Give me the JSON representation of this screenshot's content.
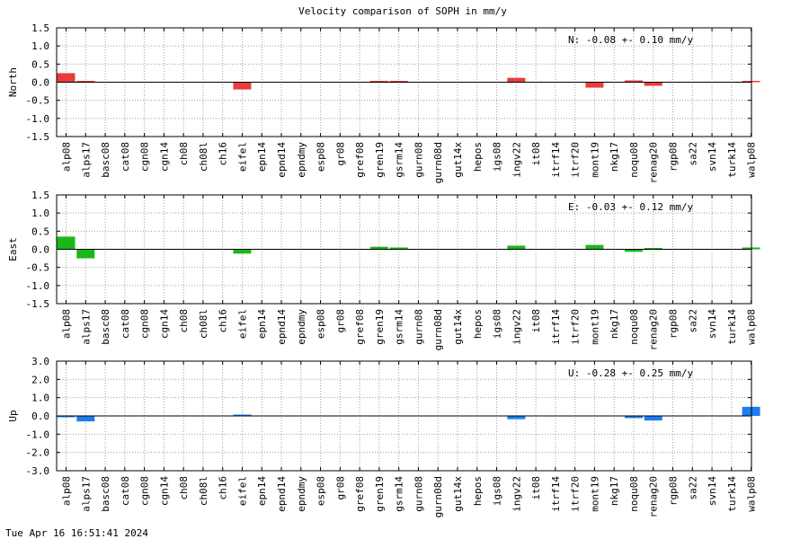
{
  "title": "Velocity comparison of SOPH in mm/y",
  "timestamp": "Tue Apr 16 16:51:41 2024",
  "chart_data": [
    {
      "type": "bar",
      "ylabel": "North",
      "ylim": [
        -1.5,
        1.5
      ],
      "yticks": [
        "1.5",
        "1.0",
        "0.5",
        "0.0",
        "-0.5",
        "-1.0",
        "-1.5"
      ],
      "yticks_values": [
        1.5,
        1.0,
        0.5,
        0.0,
        -0.5,
        -1.0,
        -1.5
      ],
      "grid": true,
      "color": "#e83c3c",
      "annotation": "N:  -0.08 +-  0.10 mm/y",
      "categories": [
        "alp08",
        "alps17",
        "basc08",
        "cat08",
        "cgn08",
        "cgn14",
        "ch08",
        "ch08l",
        "ch16",
        "eifel",
        "epn14",
        "epnd14",
        "epndmy",
        "esp08",
        "gr08",
        "gref08",
        "gren19",
        "gsrm14",
        "gurn08",
        "gurn08d",
        "gut14x",
        "hepos",
        "igs08",
        "ingv22",
        "it08",
        "itrf14",
        "itrf20",
        "mont19",
        "nkg17",
        "noqu08",
        "renag20",
        "rgp08",
        "sa22",
        "svn14",
        "turk14",
        "walp08"
      ],
      "values": [
        0.25,
        0.02,
        0,
        0,
        0,
        0,
        0,
        0,
        0,
        -0.2,
        0,
        0,
        0,
        0,
        0,
        0,
        0.02,
        0.02,
        0,
        0,
        0,
        0,
        0,
        0.12,
        0,
        0,
        0,
        -0.15,
        0,
        0.05,
        -0.1,
        0,
        0,
        0,
        0,
        0.02
      ]
    },
    {
      "type": "bar",
      "ylabel": "East",
      "ylim": [
        -1.5,
        1.5
      ],
      "yticks": [
        "1.5",
        "1.0",
        "0.5",
        "0.0",
        "-0.5",
        "-1.0",
        "-1.5"
      ],
      "yticks_values": [
        1.5,
        1.0,
        0.5,
        0.0,
        -0.5,
        -1.0,
        -1.5
      ],
      "grid": true,
      "color": "#18b818",
      "annotation": "E:  -0.03 +-  0.12 mm/y",
      "categories": [
        "alp08",
        "alps17",
        "basc08",
        "cat08",
        "cgn08",
        "cgn14",
        "ch08",
        "ch08l",
        "ch16",
        "eifel",
        "epn14",
        "epnd14",
        "epndmy",
        "esp08",
        "gr08",
        "gref08",
        "gren19",
        "gsrm14",
        "gurn08",
        "gurn08d",
        "gut14x",
        "hepos",
        "igs08",
        "ingv22",
        "it08",
        "itrf14",
        "itrf20",
        "mont19",
        "nkg17",
        "noqu08",
        "renag20",
        "rgp08",
        "sa22",
        "svn14",
        "turk14",
        "walp08"
      ],
      "values": [
        0.35,
        -0.25,
        0,
        0,
        0,
        0,
        0,
        0,
        0,
        -0.12,
        0,
        0,
        0,
        0,
        0,
        0,
        0.07,
        0.05,
        0,
        0,
        0,
        0,
        0,
        0.1,
        0,
        0,
        0,
        0.12,
        0,
        -0.07,
        0.02,
        0,
        0,
        0,
        0,
        0.05
      ]
    },
    {
      "type": "bar",
      "ylabel": "Up",
      "ylim": [
        -3.0,
        3.0
      ],
      "yticks": [
        "3.0",
        "2.0",
        "1.0",
        "0.0",
        "-1.0",
        "-2.0",
        "-3.0"
      ],
      "yticks_values": [
        3.0,
        2.0,
        1.0,
        0.0,
        -1.0,
        -2.0,
        -3.0
      ],
      "grid": true,
      "color": "#1e7ef0",
      "annotation": "U:  -0.28 +-  0.25 mm/y",
      "categories": [
        "alp08",
        "alps17",
        "basc08",
        "cat08",
        "cgn08",
        "cgn14",
        "ch08",
        "ch08l",
        "ch16",
        "eifel",
        "epn14",
        "epnd14",
        "epndmy",
        "esp08",
        "gr08",
        "gref08",
        "gren19",
        "gsrm14",
        "gurn08",
        "gurn08d",
        "gut14x",
        "hepos",
        "igs08",
        "ingv22",
        "it08",
        "itrf14",
        "itrf20",
        "mont19",
        "nkg17",
        "noqu08",
        "renag20",
        "rgp08",
        "sa22",
        "svn14",
        "turk14",
        "walp08"
      ],
      "values": [
        -0.05,
        -0.3,
        0,
        0,
        0,
        0,
        0,
        0,
        0,
        0.05,
        0,
        0,
        0,
        0,
        0,
        0,
        0,
        0,
        0,
        0,
        0,
        0,
        0,
        -0.18,
        0,
        0,
        0,
        0,
        0,
        -0.12,
        -0.25,
        0,
        0,
        0,
        0,
        0.5
      ]
    }
  ]
}
